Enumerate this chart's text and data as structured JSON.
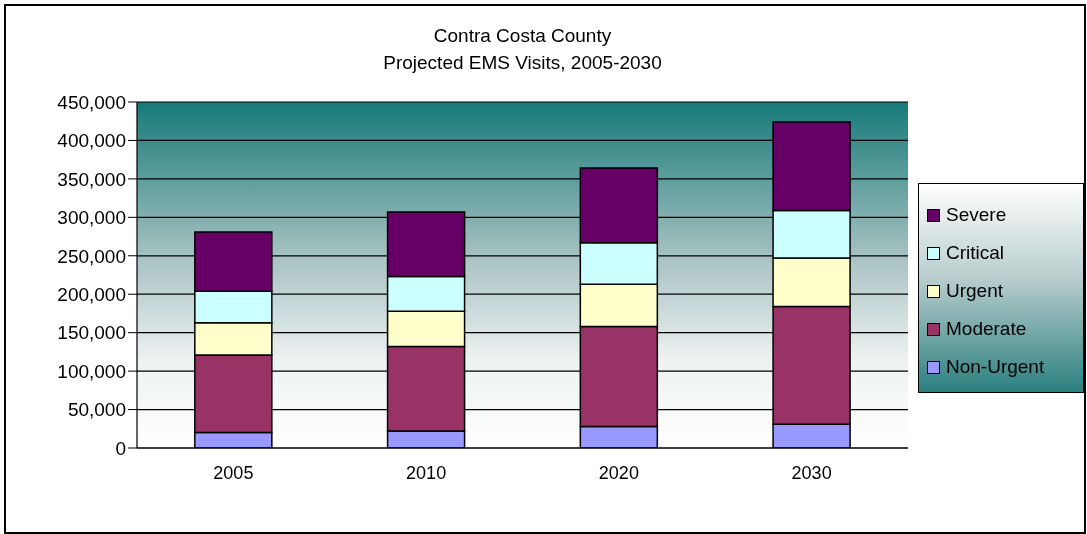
{
  "chart_data": {
    "type": "bar",
    "title": "Contra Costa County",
    "subtitle": "Projected EMS Visits, 2005-2030",
    "categories": [
      "2005",
      "2010",
      "2020",
      "2030"
    ],
    "stacked": true,
    "series": [
      {
        "name": "Non-Urgent",
        "color": "#9999ff",
        "values": [
          20000,
          22000,
          28000,
          31000
        ]
      },
      {
        "name": "Moderate",
        "color": "#993366",
        "values": [
          101000,
          110000,
          130000,
          153000
        ]
      },
      {
        "name": "Urgent",
        "color": "#ffffcc",
        "values": [
          42000,
          46000,
          55000,
          63000
        ]
      },
      {
        "name": "Critical",
        "color": "#ccffff",
        "values": [
          41000,
          45000,
          54000,
          62000
        ]
      },
      {
        "name": "Severe",
        "color": "#660066",
        "values": [
          77000,
          84000,
          97000,
          115000
        ]
      }
    ],
    "ylim": [
      0,
      450000
    ],
    "yticks": [
      0,
      {
        "value": 50000,
        "label": "50,000"
      },
      {
        "value": 100000,
        "label": "100,000"
      },
      {
        "value": 150000,
        "label": "150,000"
      },
      {
        "value": 200000,
        "label": "200,000"
      },
      {
        "value": 250000,
        "label": "250,000"
      },
      {
        "value": 300000,
        "label": "300,000"
      },
      {
        "value": 350000,
        "label": "350,000"
      },
      {
        "value": 400000,
        "label": "400,000"
      },
      {
        "value": 450000,
        "label": "450,000"
      }
    ],
    "grid": "y",
    "legend": "right"
  }
}
